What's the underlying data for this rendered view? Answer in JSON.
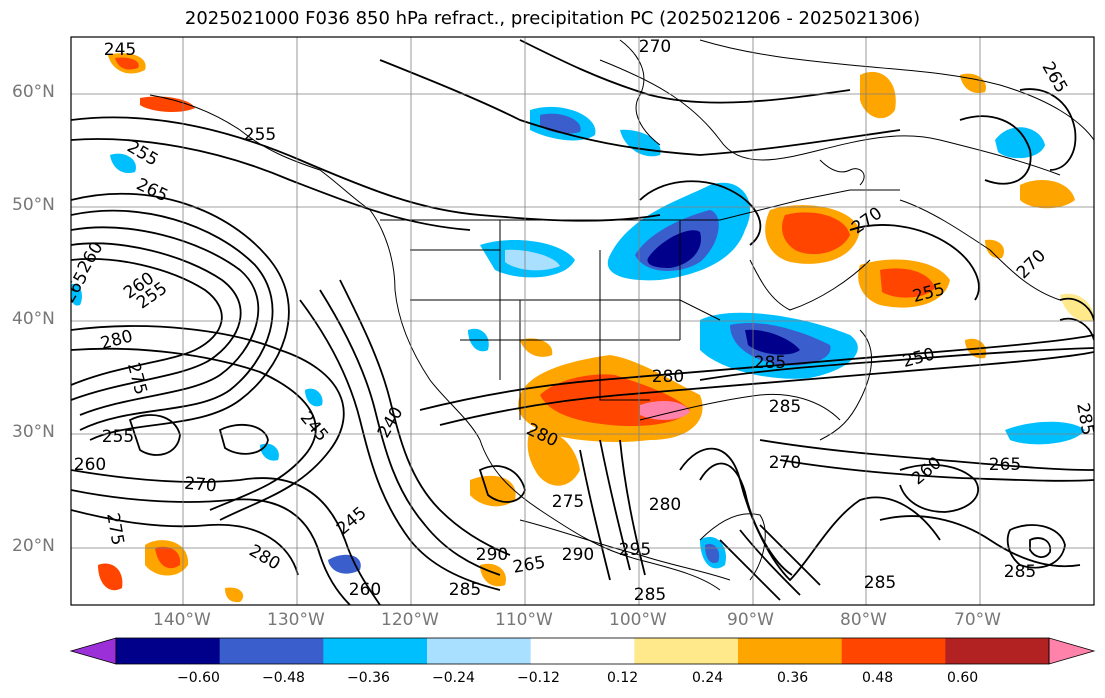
{
  "title": "2025021000 F036 850 hPa refract., precipitation PC (2025021206 - 2025021306)",
  "lat_labels": [
    "60°N",
    "50°N",
    "40°N",
    "30°N",
    "20°N"
  ],
  "lon_labels": [
    "140°W",
    "130°W",
    "120°W",
    "110°W",
    "100°W",
    "90°W",
    "80°W",
    "70°W"
  ],
  "contour_labels": [
    "245",
    "270",
    "265",
    "255",
    "255",
    "265",
    "260",
    "265",
    "260",
    "255",
    "270",
    "280",
    "275",
    "280",
    "240",
    "245",
    "255",
    "260",
    "270",
    "275",
    "245",
    "280",
    "275",
    "285",
    "280",
    "295",
    "270",
    "285",
    "260",
    "265",
    "285",
    "285",
    "250",
    "255",
    "270",
    "265",
    "280",
    "260",
    "290",
    "285",
    "285",
    "290",
    "285"
  ],
  "colorbar": {
    "ticks": [
      "−0.60",
      "−0.48",
      "−0.36",
      "−0.24",
      "−0.12",
      "0.12",
      "0.24",
      "0.36",
      "0.48",
      "0.60"
    ],
    "colors": [
      "#9b30d9",
      "#00008b",
      "#3a5fcd",
      "#00bfff",
      "#a9dfff",
      "#ffffff",
      "#ffe98a",
      "#ffa500",
      "#ff4500",
      "#b22222",
      "#ff82ab"
    ]
  },
  "colors": {
    "contour": "#000000",
    "grid": "#808080",
    "border": "#000000"
  }
}
